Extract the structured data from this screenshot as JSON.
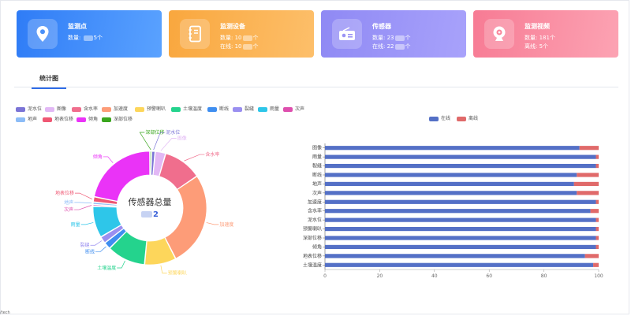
{
  "cards": [
    {
      "title": "监测点",
      "line1_prefix": "数量: ",
      "line1_suffix": "5个",
      "line2_prefix": "",
      "line2_suffix": "",
      "icon": "location-pin-icon",
      "color": "#2f7cf6"
    },
    {
      "title": "监测设备",
      "line1_prefix": "数量: 10",
      "line1_suffix": "个",
      "line2_prefix": "在线: 10",
      "line2_suffix": "个",
      "icon": "notebook-icon",
      "color": "#f9a73e"
    },
    {
      "title": "传感器",
      "line1_prefix": "数量: 23",
      "line1_suffix": "个",
      "line2_prefix": "在线: 22",
      "line2_suffix": "个",
      "icon": "radio-icon",
      "color": "#8f89f4"
    },
    {
      "title": "监测视频",
      "line1_prefix": "数量: 181个",
      "line1_suffix": "",
      "line2_prefix": "离线: 5个",
      "line2_suffix": "",
      "icon": "webcam-icon",
      "color": "#f77b94"
    }
  ],
  "tabs": [
    {
      "label": "统计图"
    }
  ],
  "donut": {
    "center_title": "传感器总量",
    "center_value_suffix": "2",
    "legend": [
      {
        "name": "泥水位",
        "color": "#7b74d6"
      },
      {
        "name": "图像",
        "color": "#e2b8f5"
      },
      {
        "name": "含水率",
        "color": "#f06e8d"
      },
      {
        "name": "加速度",
        "color": "#fd9c78"
      },
      {
        "name": "预警喇叭",
        "color": "#fdd65b"
      },
      {
        "name": "土壤温度",
        "color": "#24d38d"
      },
      {
        "name": "断线",
        "color": "#3f8ef0"
      },
      {
        "name": "裂缝",
        "color": "#9a8ff0"
      },
      {
        "name": "雨量",
        "color": "#2ec6e9"
      },
      {
        "name": "次声",
        "color": "#de4fae"
      },
      {
        "name": "地声",
        "color": "#8cbcf7"
      },
      {
        "name": "地表位移",
        "color": "#ef5773"
      },
      {
        "name": "倾角",
        "color": "#ea33f7"
      },
      {
        "name": "深部位移",
        "color": "#3aa61e"
      }
    ],
    "slices": [
      {
        "name": "深部位移",
        "value": 0.5,
        "color": "#3aa61e",
        "label": "深部位移"
      },
      {
        "name": "泥水位",
        "value": 1,
        "color": "#7b74d6",
        "label": "泥水位"
      },
      {
        "name": "图像",
        "value": 3,
        "color": "#e2b8f5",
        "label": "图像"
      },
      {
        "name": "含水率",
        "value": 11,
        "color": "#f06e8d",
        "label": "含水率"
      },
      {
        "name": "加速度",
        "value": 27,
        "color": "#fd9c78",
        "label": "加速度"
      },
      {
        "name": "预警喇叭",
        "value": 9,
        "color": "#fdd65b",
        "label": "预警喇叭"
      },
      {
        "name": "土壤温度",
        "value": 11,
        "color": "#24d38d",
        "label": "土壤温度"
      },
      {
        "name": "断线",
        "value": 2,
        "color": "#3f8ef0",
        "label": "断线"
      },
      {
        "name": "裂缝",
        "value": 2,
        "color": "#9a8ff0",
        "label": "裂缝"
      },
      {
        "name": "雨量",
        "value": 9,
        "color": "#2ec6e9",
        "label": "雨量"
      },
      {
        "name": "次声",
        "value": 0.5,
        "color": "#de4fae",
        "label": "次声"
      },
      {
        "name": "地声",
        "value": 0.7,
        "color": "#8cbcf7",
        "label": "地声"
      },
      {
        "name": "地表位移",
        "value": 1.5,
        "color": "#ef5773",
        "label": "地表位移"
      },
      {
        "name": "倾角",
        "value": 21.8,
        "color": "#ea33f7",
        "label": "倾角"
      }
    ]
  },
  "chart_data": {
    "type": "bar",
    "orientation": "horizontal-stacked",
    "categories": [
      "图像",
      "雨量",
      "裂缝",
      "断线",
      "地声",
      "次声",
      "加速度",
      "含水率",
      "泥水位",
      "预警喇叭",
      "深部位移",
      "倾角",
      "地表位移",
      "土壤温度"
    ],
    "series": [
      {
        "name": "在线",
        "color": "#5470c6",
        "values": [
          93,
          99,
          99,
          92,
          91,
          92,
          99,
          97,
          99,
          99,
          99,
          99,
          95,
          98
        ]
      },
      {
        "name": "离线",
        "color": "#e06a6a",
        "values": [
          7,
          1,
          1,
          8,
          9,
          8,
          1,
          3,
          1,
          1,
          1,
          1,
          5,
          2
        ]
      }
    ],
    "xlim": [
      0,
      100
    ],
    "xticks": [
      "0",
      "20",
      "40",
      "60",
      "80",
      "100"
    ],
    "legend_position": "top-center"
  },
  "footer": "/tech"
}
